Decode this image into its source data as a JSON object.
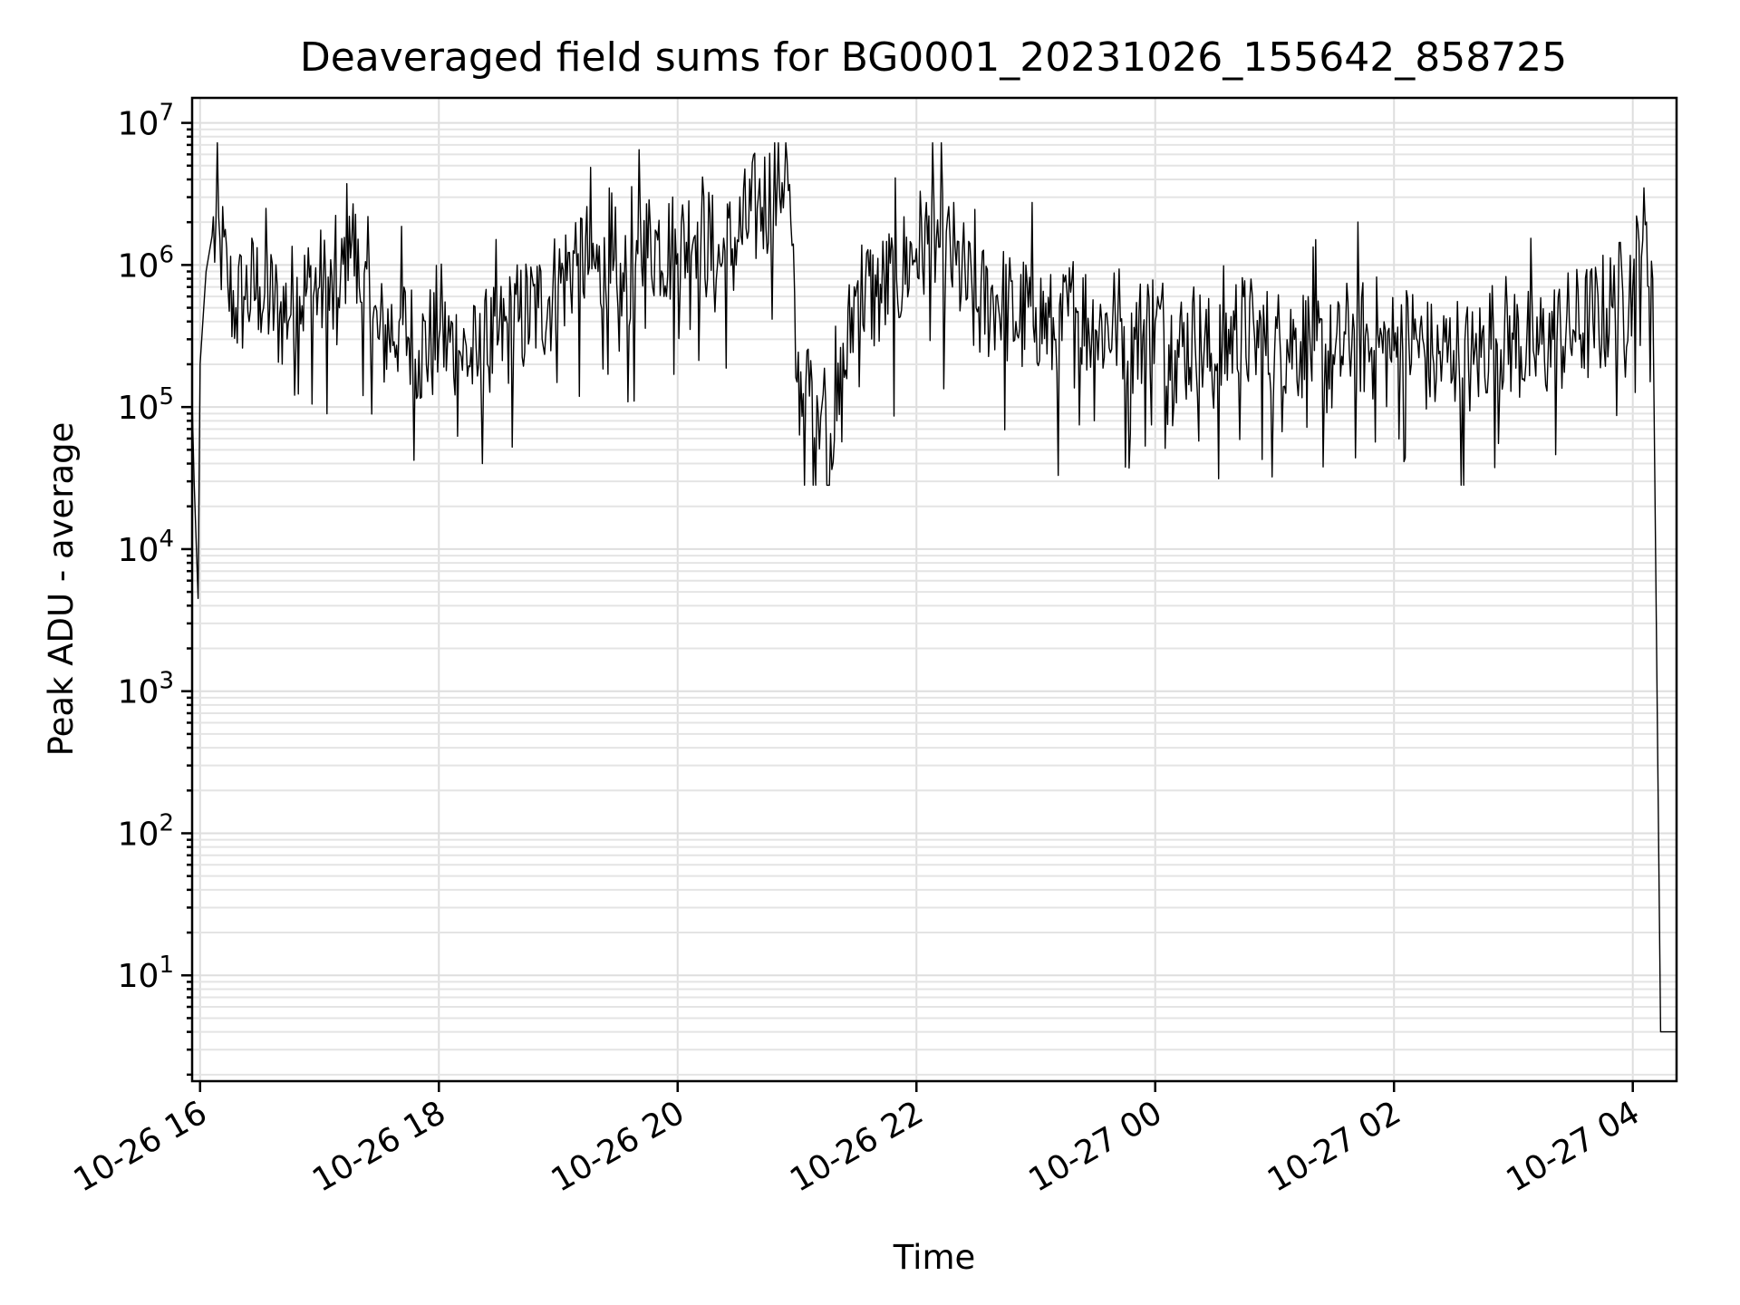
{
  "chart_data": {
    "type": "line",
    "title": "Deaveraged field sums for BG0001_20231026_155642_858725",
    "xlabel": "Time",
    "ylabel": "Peak ADU - average",
    "yscale": "log",
    "ylim": [
      1.8,
      15000000
    ],
    "xlim": [
      "2023-10-26 15:56",
      "2023-10-27 04:22"
    ],
    "x_ticks": [
      "10-26 16",
      "10-26 18",
      "10-26 20",
      "10-26 22",
      "10-27 00",
      "10-27 02",
      "10-27 04"
    ],
    "y_ticks": [
      {
        "base": "10",
        "exp": "1",
        "value": 10
      },
      {
        "base": "10",
        "exp": "2",
        "value": 100
      },
      {
        "base": "10",
        "exp": "3",
        "value": 1000
      },
      {
        "base": "10",
        "exp": "4",
        "value": 10000
      },
      {
        "base": "10",
        "exp": "5",
        "value": 100000
      },
      {
        "base": "10",
        "exp": "6",
        "value": 1000000
      },
      {
        "base": "10",
        "exp": "7",
        "value": 10000000
      }
    ],
    "grid": true,
    "line_color": "#000000",
    "series": [
      {
        "x": [
          "2023-10-26 15:56",
          "2023-10-26 15:57",
          "2023-10-26 15:59",
          "2023-10-26 16:00",
          "2023-10-26 16:03",
          "2023-10-26 16:06",
          "2023-10-26 16:10",
          "2023-10-26 16:14",
          "2023-10-26 16:18",
          "2023-10-26 16:22",
          "2023-10-26 16:30",
          "2023-10-26 16:40",
          "2023-10-26 16:50",
          "2023-10-26 17:00",
          "2023-10-26 17:10",
          "2023-10-26 17:15",
          "2023-10-26 17:20",
          "2023-10-26 17:30",
          "2023-10-26 17:40",
          "2023-10-26 17:50",
          "2023-10-26 18:00",
          "2023-10-26 18:10",
          "2023-10-26 18:20",
          "2023-10-26 18:30",
          "2023-10-26 18:40",
          "2023-10-26 18:50",
          "2023-10-26 19:00",
          "2023-10-26 19:10",
          "2023-10-26 19:20",
          "2023-10-26 19:30",
          "2023-10-26 19:40",
          "2023-10-26 19:50",
          "2023-10-26 20:00",
          "2023-10-26 20:10",
          "2023-10-26 20:20",
          "2023-10-26 20:30",
          "2023-10-26 20:40",
          "2023-10-26 20:50",
          "2023-10-26 20:55",
          "2023-10-26 21:00",
          "2023-10-26 21:10",
          "2023-10-26 21:20",
          "2023-10-26 21:30",
          "2023-10-26 21:40",
          "2023-10-26 21:50",
          "2023-10-26 22:00",
          "2023-10-26 22:10",
          "2023-10-26 22:20",
          "2023-10-26 22:30",
          "2023-10-26 22:40",
          "2023-10-26 22:50",
          "2023-10-26 23:00",
          "2023-10-26 23:10",
          "2023-10-26 23:20",
          "2023-10-26 23:30",
          "2023-10-26 23:40",
          "2023-10-26 23:50",
          "2023-10-27 00:00",
          "2023-10-27 00:10",
          "2023-10-27 00:20",
          "2023-10-27 00:30",
          "2023-10-27 00:40",
          "2023-10-27 00:50",
          "2023-10-27 01:00",
          "2023-10-27 01:10",
          "2023-10-27 01:20",
          "2023-10-27 01:30",
          "2023-10-27 01:40",
          "2023-10-27 01:50",
          "2023-10-27 02:00",
          "2023-10-27 02:10",
          "2023-10-27 02:20",
          "2023-10-27 02:30",
          "2023-10-27 02:40",
          "2023-10-27 02:50",
          "2023-10-27 03:00",
          "2023-10-27 03:10",
          "2023-10-27 03:20",
          "2023-10-27 03:30",
          "2023-10-27 03:40",
          "2023-10-27 03:50",
          "2023-10-27 04:00",
          "2023-10-27 04:05",
          "2023-10-27 04:10",
          "2023-10-27 04:14",
          "2023-10-27 04:17",
          "2023-10-27 04:22"
        ],
        "y": [
          110000,
          30000,
          4500,
          200000,
          900000,
          1600000,
          1500000,
          700000,
          500000,
          600000,
          700000,
          450000,
          600000,
          700000,
          500000,
          2200000,
          700000,
          300000,
          400000,
          250000,
          300000,
          250000,
          200000,
          300000,
          400000,
          500000,
          700000,
          1200000,
          900000,
          500000,
          1200000,
          1500000,
          1200000,
          2000000,
          1000000,
          1500000,
          2500000,
          3500000,
          5500000,
          150000,
          120000,
          80000,
          700000,
          600000,
          800000,
          1300000,
          1500000,
          1000000,
          500000,
          600000,
          400000,
          500000,
          300000,
          500000,
          350000,
          400000,
          300000,
          400000,
          250000,
          300000,
          200000,
          350000,
          300000,
          250000,
          300000,
          250000,
          200000,
          350000,
          250000,
          250000,
          300000,
          200000,
          250000,
          200000,
          350000,
          300000,
          250000,
          300000,
          350000,
          400000,
          500000,
          700000,
          1500000,
          800000,
          4,
          4,
          4
        ]
      }
    ]
  }
}
